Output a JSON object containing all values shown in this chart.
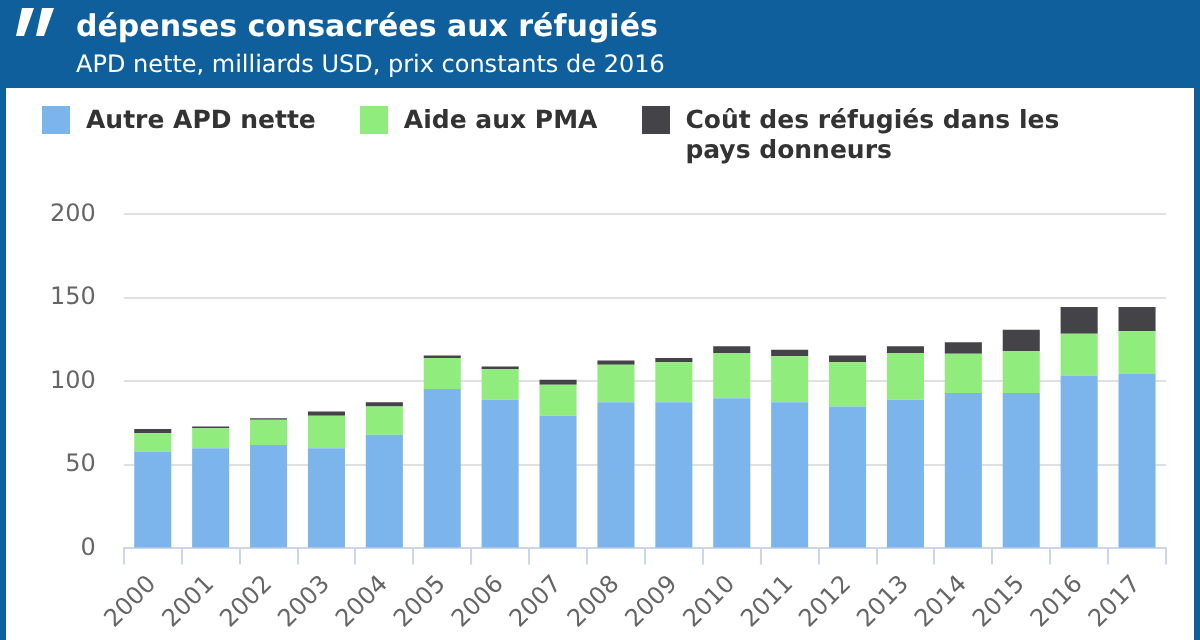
{
  "chart_data": {
    "type": "bar",
    "title": "dépenses consacrées aux réfugiés",
    "subtitle": "APD nette, milliards USD, prix constants de 2016",
    "categories": [
      "2000",
      "2001",
      "2002",
      "2003",
      "2004",
      "2005",
      "2006",
      "2007",
      "2008",
      "2009",
      "2010",
      "2011",
      "2012",
      "2013",
      "2014",
      "2015",
      "2016",
      "2017"
    ],
    "series": [
      {
        "name": "Autre APD nette",
        "color": "#7cb5ec",
        "values": [
          58,
          60,
          62,
          60,
          68,
          95.5,
          89,
          79.5,
          87.5,
          87.5,
          90,
          87.5,
          85,
          89,
          93,
          93,
          103.5,
          104.5
        ]
      },
      {
        "name": "Aide aux PMA",
        "color": "#90ed7d",
        "values": [
          11,
          12,
          15,
          19.5,
          17,
          18.5,
          18.5,
          18.5,
          22.5,
          24,
          27,
          27.5,
          26.5,
          28,
          23.5,
          25,
          25,
          25.5
        ]
      },
      {
        "name": "Coût des réfugiés dans les pays donneurs",
        "color": "#434348",
        "values": [
          2.5,
          1,
          1,
          2.5,
          2.5,
          1.5,
          1.5,
          3,
          2.5,
          2.5,
          4,
          4,
          4,
          4,
          7,
          13,
          16,
          14.5
        ]
      }
    ],
    "stacked": true,
    "ylim": [
      0,
      200
    ],
    "yticks": [
      0,
      50,
      100,
      150,
      200
    ],
    "grid": "y",
    "legend": "top"
  }
}
